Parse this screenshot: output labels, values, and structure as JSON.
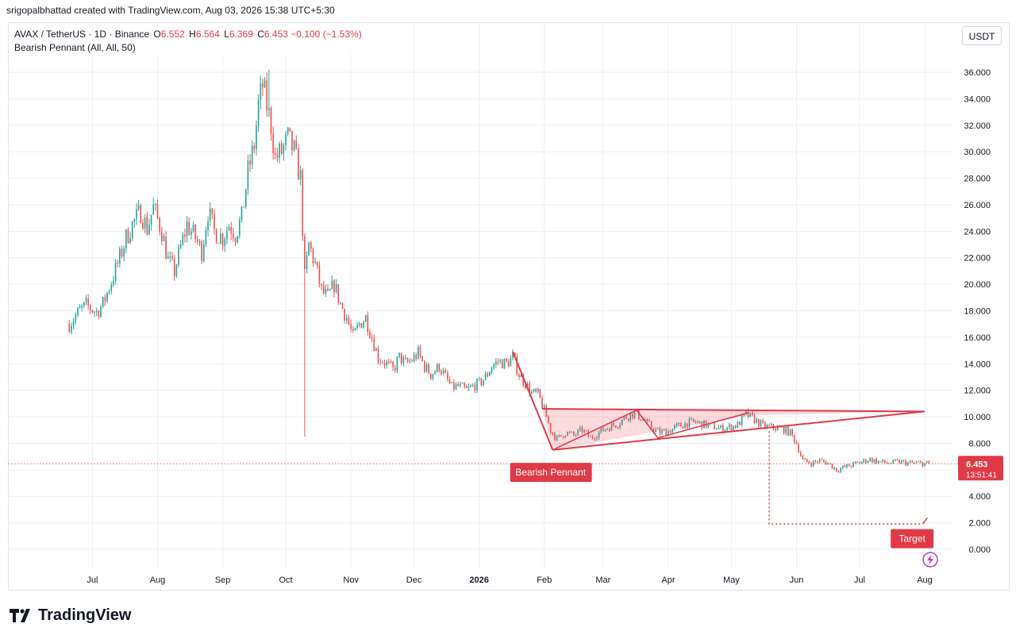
{
  "caption": "srigopalbhattad created with TradingView.com, Aug 03, 2026 15:38 UTC+5:30",
  "legend": {
    "symbol": "AVAX / TetherUS · 1D · Binance",
    "open_label": "O",
    "open": "6.552",
    "high_label": "H",
    "high": "6.564",
    "low_label": "L",
    "low": "6.369",
    "close_label": "C",
    "close": "6.453",
    "change": "−0.100 (−1.53%)",
    "indicator": "Bearish Pennant (All, All, 50)"
  },
  "currency_button": "USDT",
  "price_badge": {
    "price": "6.453",
    "countdown": "13:51:41"
  },
  "logo_text": "TradingView",
  "icons": {
    "logo": "tradingview-logo-icon",
    "lightning": "lightning-icon"
  },
  "colors": {
    "up": "#26a69a",
    "down": "#ef5350",
    "pattern": "#e03a47",
    "pattern_fill": "rgba(240,90,100,0.22)",
    "badge": "#e03a47"
  },
  "chart_data": {
    "type": "candlestick",
    "ylim": [
      -1.5,
      38
    ],
    "y_ticks": [
      "0.000",
      "2.000",
      "4.000",
      "6.000",
      "8.000",
      "10.000",
      "12.000",
      "14.000",
      "16.000",
      "18.000",
      "20.000",
      "22.000",
      "24.000",
      "26.000",
      "28.000",
      "30.000",
      "32.000",
      "34.000",
      "36.000"
    ],
    "x_ticks": [
      {
        "label": "Jul",
        "date": "2025-07-01"
      },
      {
        "label": "Aug",
        "date": "2025-08-01"
      },
      {
        "label": "Sep",
        "date": "2025-09-01"
      },
      {
        "label": "Oct",
        "date": "2025-10-01"
      },
      {
        "label": "Nov",
        "date": "2025-11-01"
      },
      {
        "label": "Dec",
        "date": "2025-12-01"
      },
      {
        "label": "2026",
        "date": "2026-01-01",
        "bold": true
      },
      {
        "label": "Feb",
        "date": "2026-02-01"
      },
      {
        "label": "Mar",
        "date": "2026-03-01"
      },
      {
        "label": "Apr",
        "date": "2026-04-01"
      },
      {
        "label": "May",
        "date": "2026-05-01"
      },
      {
        "label": "Jun",
        "date": "2026-06-01"
      },
      {
        "label": "Jul",
        "date": "2026-07-01"
      },
      {
        "label": "Aug",
        "date": "2026-08-01"
      }
    ],
    "close_path": [
      [
        "2025-06-20",
        17.0
      ],
      [
        "2025-06-25",
        18.0
      ],
      [
        "2025-06-28",
        18.4
      ],
      [
        "2025-07-03",
        17.9
      ],
      [
        "2025-07-06",
        18.5
      ],
      [
        "2025-07-10",
        20.2
      ],
      [
        "2025-07-14",
        22.0
      ],
      [
        "2025-07-17",
        23.5
      ],
      [
        "2025-07-20",
        24.5
      ],
      [
        "2025-07-24",
        25.5
      ],
      [
        "2025-07-27",
        24.2
      ],
      [
        "2025-07-30",
        25.8
      ],
      [
        "2025-08-03",
        24.0
      ],
      [
        "2025-08-06",
        21.8
      ],
      [
        "2025-08-09",
        21.0
      ],
      [
        "2025-08-12",
        22.8
      ],
      [
        "2025-08-15",
        24.5
      ],
      [
        "2025-08-19",
        23.5
      ],
      [
        "2025-08-22",
        22.5
      ],
      [
        "2025-08-25",
        25.5
      ],
      [
        "2025-08-28",
        24.0
      ],
      [
        "2025-09-01",
        23.5
      ],
      [
        "2025-09-04",
        24.5
      ],
      [
        "2025-09-07",
        23.8
      ],
      [
        "2025-09-10",
        25.0
      ],
      [
        "2025-09-13",
        28.5
      ],
      [
        "2025-09-16",
        30.5
      ],
      [
        "2025-09-18",
        33.5
      ],
      [
        "2025-09-20",
        35.0
      ],
      [
        "2025-09-22",
        33.5
      ],
      [
        "2025-09-24",
        32.0
      ],
      [
        "2025-09-26",
        29.5
      ],
      [
        "2025-09-29",
        30.0
      ],
      [
        "2025-10-02",
        31.0
      ],
      [
        "2025-10-05",
        30.0
      ],
      [
        "2025-10-08",
        28.0
      ],
      [
        "2025-10-10",
        20.5
      ],
      [
        "2025-10-12",
        23.0
      ],
      [
        "2025-10-15",
        21.5
      ],
      [
        "2025-10-18",
        19.5
      ],
      [
        "2025-10-21",
        19.0
      ],
      [
        "2025-10-24",
        20.0
      ],
      [
        "2025-10-27",
        18.5
      ],
      [
        "2025-10-30",
        17.5
      ],
      [
        "2025-11-02",
        16.0
      ],
      [
        "2025-11-05",
        17.0
      ],
      [
        "2025-11-08",
        17.5
      ],
      [
        "2025-11-11",
        16.0
      ],
      [
        "2025-11-14",
        14.5
      ],
      [
        "2025-11-18",
        14.0
      ],
      [
        "2025-11-21",
        13.5
      ],
      [
        "2025-11-24",
        14.5
      ],
      [
        "2025-11-27",
        14.0
      ],
      [
        "2025-11-30",
        14.3
      ],
      [
        "2025-12-03",
        14.8
      ],
      [
        "2025-12-06",
        13.8
      ],
      [
        "2025-12-09",
        13.2
      ],
      [
        "2025-12-13",
        13.8
      ],
      [
        "2025-12-16",
        13.0
      ],
      [
        "2025-12-19",
        12.2
      ],
      [
        "2025-12-22",
        12.3
      ],
      [
        "2025-12-26",
        12.0
      ],
      [
        "2025-12-29",
        12.3
      ],
      [
        "2026-01-01",
        12.5
      ],
      [
        "2026-01-04",
        13.0
      ],
      [
        "2026-01-07",
        13.8
      ],
      [
        "2026-01-10",
        14.2
      ],
      [
        "2026-01-14",
        14.0
      ],
      [
        "2026-01-17",
        14.5
      ],
      [
        "2026-01-20",
        13.2
      ],
      [
        "2026-01-23",
        12.5
      ],
      [
        "2026-01-26",
        11.8
      ],
      [
        "2026-01-29",
        11.7
      ],
      [
        "2026-02-01",
        10.5
      ],
      [
        "2026-02-04",
        9.0
      ],
      [
        "2026-02-07",
        8.3
      ],
      [
        "2026-02-11",
        8.8
      ],
      [
        "2026-02-15",
        8.6
      ],
      [
        "2026-02-19",
        9.0
      ],
      [
        "2026-02-23",
        8.4
      ],
      [
        "2026-02-27",
        8.8
      ],
      [
        "2026-03-03",
        9.2
      ],
      [
        "2026-03-08",
        9.5
      ],
      [
        "2026-03-12",
        10.0
      ],
      [
        "2026-03-16",
        10.3
      ],
      [
        "2026-03-20",
        9.8
      ],
      [
        "2026-03-24",
        9.2
      ],
      [
        "2026-03-28",
        8.8
      ],
      [
        "2026-04-02",
        9.0
      ],
      [
        "2026-04-06",
        9.3
      ],
      [
        "2026-04-10",
        9.5
      ],
      [
        "2026-04-14",
        9.6
      ],
      [
        "2026-04-18",
        9.4
      ],
      [
        "2026-04-22",
        9.3
      ],
      [
        "2026-04-26",
        9.1
      ],
      [
        "2026-04-30",
        9.2
      ],
      [
        "2026-05-04",
        9.4
      ],
      [
        "2026-05-08",
        10.2
      ],
      [
        "2026-05-12",
        9.8
      ],
      [
        "2026-05-16",
        9.3
      ],
      [
        "2026-05-20",
        9.2
      ],
      [
        "2026-05-25",
        9.1
      ],
      [
        "2026-05-29",
        8.8
      ],
      [
        "2026-06-01",
        8.0
      ],
      [
        "2026-06-04",
        6.7
      ],
      [
        "2026-06-08",
        6.5
      ],
      [
        "2026-06-12",
        6.7
      ],
      [
        "2026-06-16",
        6.5
      ],
      [
        "2026-06-20",
        6.0
      ],
      [
        "2026-06-24",
        6.2
      ],
      [
        "2026-06-28",
        6.4
      ],
      [
        "2026-07-02",
        6.6
      ],
      [
        "2026-07-06",
        6.8
      ],
      [
        "2026-07-10",
        6.6
      ],
      [
        "2026-07-15",
        6.5
      ],
      [
        "2026-07-20",
        6.6
      ],
      [
        "2026-07-25",
        6.5
      ],
      [
        "2026-07-30",
        6.5
      ],
      [
        "2026-08-03",
        6.453
      ]
    ],
    "pattern": {
      "pole": [
        [
          "2026-01-17",
          14.9
        ],
        [
          "2026-02-05",
          7.5
        ]
      ],
      "upper": [
        [
          "2026-01-31",
          10.6
        ],
        [
          "2026-08-01",
          10.4
        ]
      ],
      "lower": [
        [
          "2026-02-05",
          7.5
        ],
        [
          "2026-05-09",
          10.1
        ]
      ],
      "zigzag": [
        [
          "2026-02-05",
          7.5
        ],
        [
          "2026-03-17",
          10.5
        ],
        [
          "2026-03-27",
          8.4
        ],
        [
          "2026-05-09",
          10.3
        ]
      ],
      "label": "Bearish Pennant",
      "label_at": [
        "2026-02-04",
        5.8
      ]
    },
    "target": {
      "label": "Target",
      "from": [
        "2026-05-19",
        8.9
      ],
      "to": [
        "2026-07-31",
        1.9
      ],
      "label_at": [
        "2026-07-26",
        0.8
      ]
    }
  }
}
